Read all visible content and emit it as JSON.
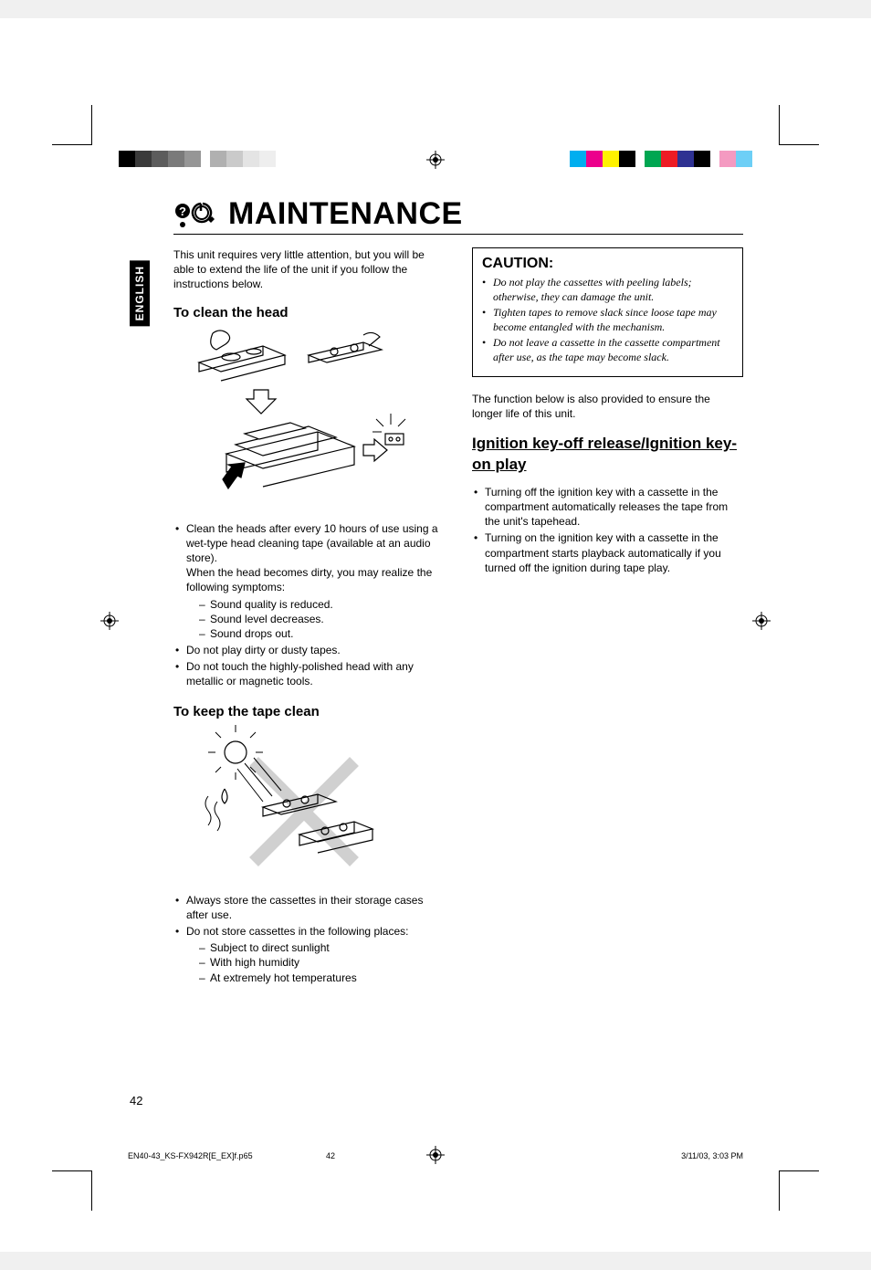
{
  "page": {
    "number": "42",
    "title": "MAINTENANCE",
    "lang_tab": "ENGLISH"
  },
  "colorbars": {
    "left": [
      "#000000",
      "#3a3a3a",
      "#5c5c5c",
      "#7a7a7a",
      "#969696",
      "#b0b0b0",
      "#cacaca",
      "#e4e4e4",
      "#eeeeee",
      "#ffffff"
    ],
    "right": [
      "#00aeef",
      "#ec008c",
      "#fff200",
      "#000000",
      "#00a651",
      "#ed1c24",
      "#2e3192",
      "#000000",
      "#f49ac1",
      "#6dcff6"
    ]
  },
  "intro": "This unit requires very little attention, but you will be able to extend the life of the unit if you follow the instructions below.",
  "sec_clean_head": {
    "title": "To clean the head",
    "b1_main": "Clean the heads after every 10 hours of use using a wet-type head cleaning tape (available at an audio store).",
    "b1_follow": "When the head becomes dirty, you may realize the following symptoms:",
    "b1_d1": "Sound quality is reduced.",
    "b1_d2": "Sound level decreases.",
    "b1_d3": "Sound drops out.",
    "b2": "Do not play dirty or dusty tapes.",
    "b3": "Do not touch the highly-polished head with any metallic or magnetic tools."
  },
  "sec_keep_tape": {
    "title": "To keep the tape clean",
    "b1": "Always store the cassettes in their storage cases after use.",
    "b2_main": "Do not store cassettes in the following places:",
    "b2_d1": "Subject to direct sunlight",
    "b2_d2": "With high humidity",
    "b2_d3": "At extremely hot temperatures"
  },
  "caution": {
    "title": "CAUTION:",
    "c1": "Do not play the cassettes with peeling labels; otherwise, they can damage the unit.",
    "c2": "Tighten tapes to remove slack since loose tape may become entangled with the mechanism.",
    "c3": "Do not leave a cassette in the cassette compartment after use, as the tape may become slack."
  },
  "func_intro": "The function below is also provided to ensure the longer life of this unit.",
  "ignition": {
    "title": "Ignition key-off release/Ignition key-on play",
    "b1": "Turning off the ignition key with a cassette in the compartment automatically releases the tape from the unit's tapehead.",
    "b2": "Turning on the ignition key with a cassette in the compartment starts playback automatically if you turned off the ignition during tape play."
  },
  "footer": {
    "file": "EN40-43_KS-FX942R[E_EX]f.p65",
    "page": "42",
    "datetime": "3/11/03, 3:03 PM"
  }
}
